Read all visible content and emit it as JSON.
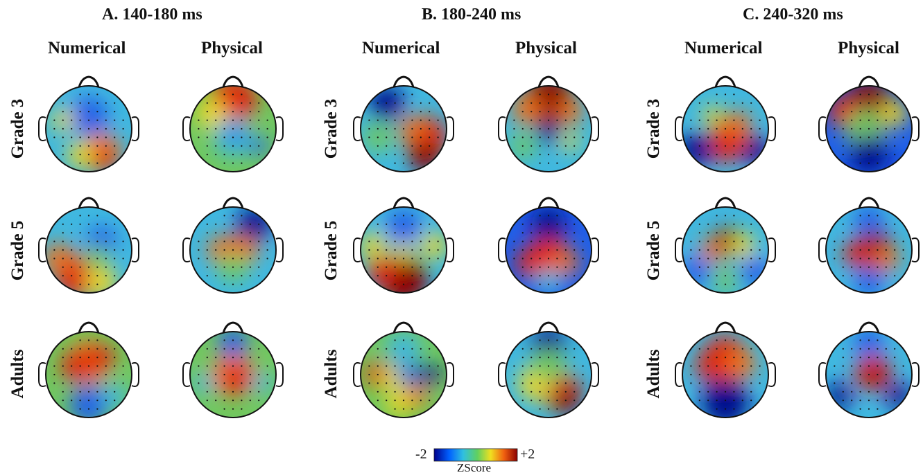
{
  "panels": [
    {
      "title": "A. 140-180 ms",
      "conditions": [
        "Numerical",
        "Physical"
      ]
    },
    {
      "title": "B. 180-240 ms",
      "conditions": [
        "Numerical",
        "Physical"
      ]
    },
    {
      "title": "C. 240-320 ms",
      "conditions": [
        "Numerical",
        "Physical"
      ]
    }
  ],
  "rows": [
    "Grade 3",
    "Grade 5",
    "Adults"
  ],
  "colorbar": {
    "min_label": "-2",
    "max_label": "+2",
    "label": "ZScore",
    "colors": [
      "#00008b",
      "#0060ff",
      "#30c0e0",
      "#60d060",
      "#f0e020",
      "#f06010",
      "#8b0000"
    ]
  }
}
